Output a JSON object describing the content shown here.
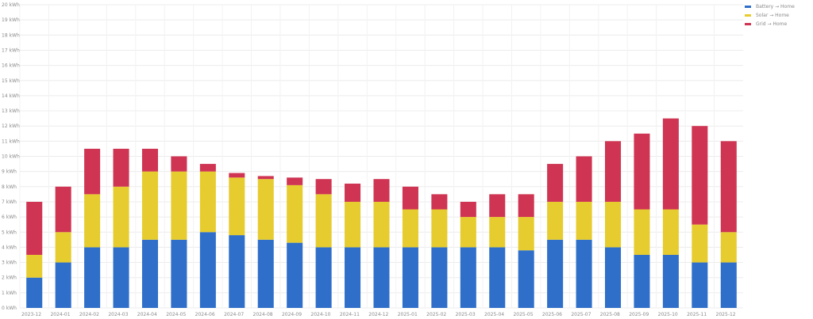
{
  "chart_data": {
    "type": "bar",
    "stacked": true,
    "ylim": [
      0,
      20
    ],
    "y_ticks": [
      0,
      1,
      2,
      3,
      4,
      5,
      6,
      7,
      8,
      9,
      10,
      11,
      12,
      13,
      14,
      15,
      16,
      17,
      18,
      19,
      20
    ],
    "y_tick_labels": [
      "0 kWh",
      "1 kWh",
      "2 kWh",
      "3 kWh",
      "4 kWh",
      "5 kWh",
      "6 kWh",
      "7 kWh",
      "8 kWh",
      "9 kWh",
      "10 kWh",
      "11 kWh",
      "12 kWh",
      "13 kWh",
      "14 kWh",
      "15 kWh",
      "16 kWh",
      "17 kWh",
      "18 kWh",
      "19 kWh",
      "20 kWh"
    ],
    "grid": true,
    "legend_position": "top-right",
    "x_tick_labels": [
      "2023-12",
      "2024-01",
      "2024-02",
      "2024-03",
      "2024-04",
      "2024-05",
      "2024-06",
      "2024-07",
      "2024-08",
      "2024-09",
      "2024-10",
      "2024-11",
      "2024-12",
      "2025-01",
      "2025-02",
      "2025-03",
      "2025-04",
      "2025-05",
      "2025-06",
      "2025-07",
      "2025-08",
      "2025-09",
      "2025-10",
      "2025-11",
      "2025-12"
    ],
    "categories": [
      "2023-12",
      "2024-01",
      "2024-02",
      "2024-03",
      "2024-04",
      "2024-05",
      "2024-06",
      "2024-07",
      "2024-08",
      "2024-09",
      "2024-10",
      "2024-11",
      "2024-12",
      "2025-01",
      "2025-02",
      "2025-03",
      "2025-04",
      "2025-05",
      "2025-06",
      "2025-07",
      "2025-08",
      "2025-09",
      "2025-10",
      "2025-11",
      "2025-12"
    ],
    "series": [
      {
        "name": "Battery → Home",
        "color": "#2f6fc9",
        "values": [
          2.0,
          3.0,
          4.0,
          4.0,
          4.5,
          4.5,
          5.0,
          4.8,
          4.5,
          4.3,
          4.0,
          4.0,
          4.0,
          4.0,
          4.0,
          4.0,
          4.0,
          3.8,
          4.5,
          4.5,
          4.0,
          3.5,
          3.5,
          3.0,
          3.0
        ]
      },
      {
        "name": "Solar → Home",
        "color": "#e6cc2e",
        "values": [
          1.5,
          2.0,
          3.5,
          4.0,
          4.5,
          4.5,
          4.0,
          3.8,
          4.0,
          3.8,
          3.5,
          3.0,
          3.0,
          2.5,
          2.5,
          2.0,
          2.0,
          2.2,
          2.5,
          2.5,
          3.0,
          3.0,
          3.0,
          2.5,
          2.0
        ]
      },
      {
        "name": "Grid → Home",
        "color": "#cf3553",
        "values": [
          3.5,
          3.0,
          3.0,
          2.5,
          1.5,
          1.0,
          0.5,
          0.3,
          0.2,
          0.5,
          1.0,
          1.2,
          1.5,
          1.5,
          1.0,
          1.0,
          1.5,
          1.5,
          2.5,
          3.0,
          4.0,
          5.0,
          6.0,
          6.5,
          6.0
        ]
      }
    ]
  }
}
